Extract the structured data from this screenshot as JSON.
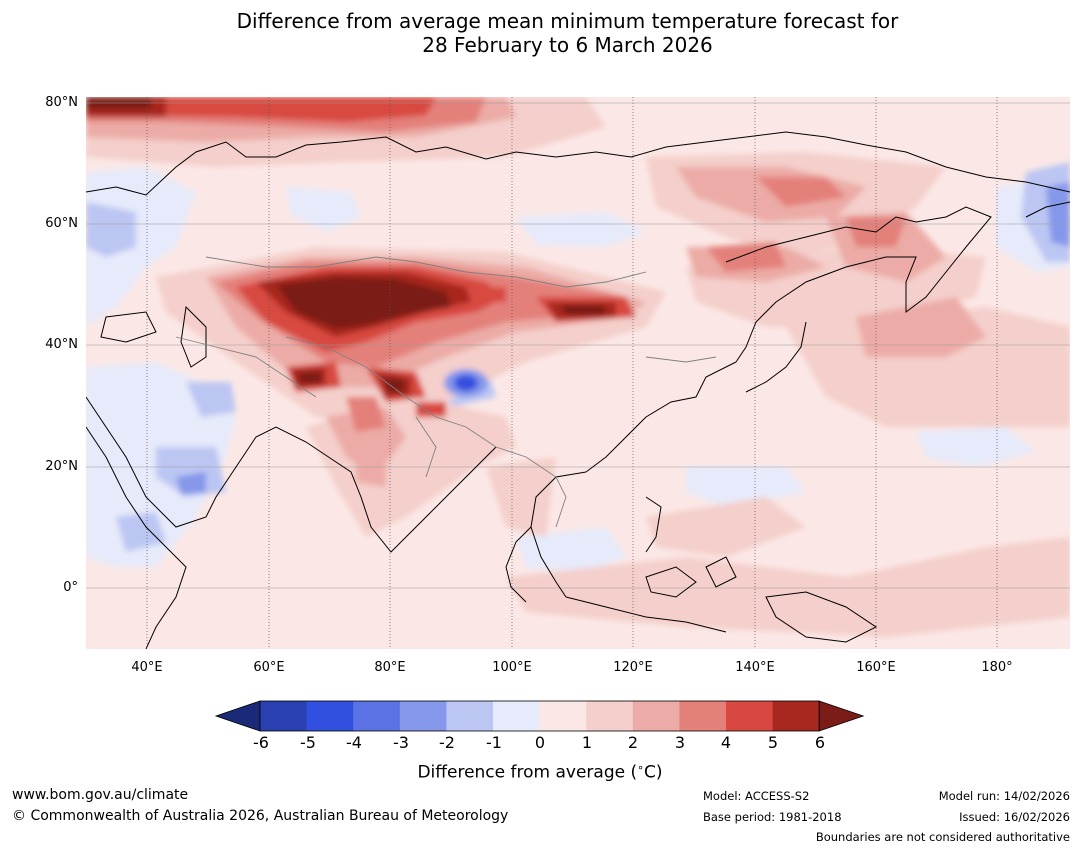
{
  "title_line1": "Difference from average mean minimum temperature forecast for",
  "title_line2": "28 February to 6 March 2026",
  "map": {
    "lat_labels": [
      "80°N",
      "60°N",
      "40°N",
      "20°N",
      "0°"
    ],
    "lon_labels": [
      "40°E",
      "60°E",
      "80°E",
      "100°E",
      "120°E",
      "140°E",
      "160°E",
      "180°"
    ]
  },
  "colorbar": {
    "label": "Difference from average ($^\\circ$C)",
    "label_text": "Difference from average (",
    "unit_text": "C)",
    "ticks": [
      "-6",
      "-5",
      "-4",
      "-3",
      "-2",
      "-1",
      "0",
      "1",
      "2",
      "3",
      "4",
      "5",
      "6"
    ],
    "colors": [
      "#1a2a78",
      "#2a3fb0",
      "#3150e0",
      "#5a72e3",
      "#8597ea",
      "#bcc6f3",
      "#e6eafa",
      "#fbe8e6",
      "#f4cfcb",
      "#ecaba6",
      "#e4807a",
      "#d84840",
      "#a8281f",
      "#7b1c18"
    ]
  },
  "footer": {
    "website": "www.bom.gov.au/climate",
    "copyright": "© Commonwealth of Australia 2026, Australian Bureau of Meteorology",
    "model": "Model: ACCESS-S2",
    "base_period": "Base period: 1981-2018",
    "model_run": "Model run: 14/02/2026",
    "issued": "Issued: 16/02/2026",
    "disclaimer": "Boundaries are not considered authoritative"
  }
}
